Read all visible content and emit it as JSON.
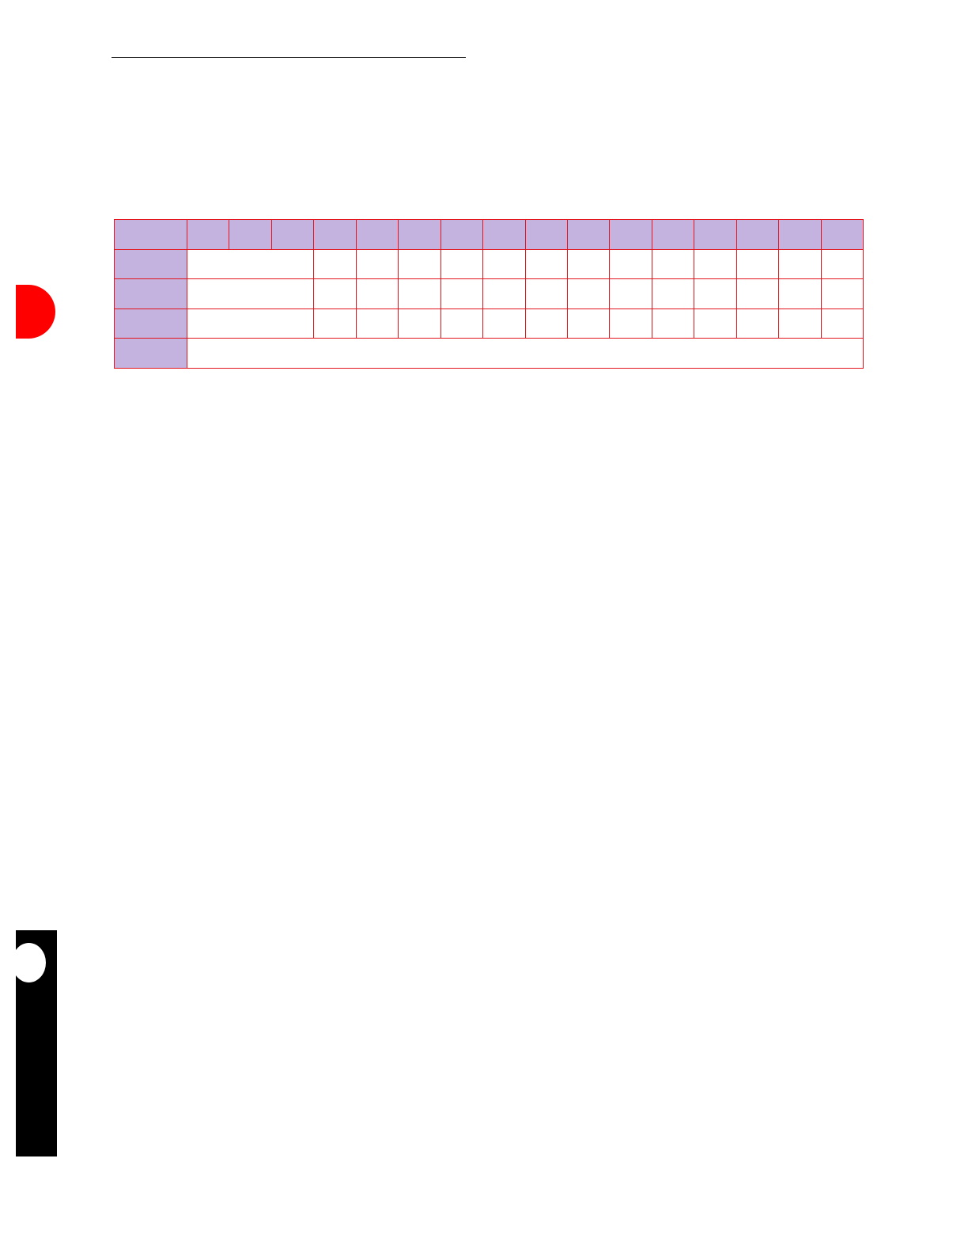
{
  "colors": {
    "table_border": "#e3141c",
    "header_fill": "#c5b3df",
    "cell_fill": "#ffffff",
    "red_tab": "#ff0000",
    "black_tab": "#000000"
  },
  "table": {
    "header_row": [
      "",
      "",
      "",
      "",
      "",
      "",
      "",
      "",
      "",
      "",
      "",
      "",
      "",
      "",
      "",
      "",
      ""
    ],
    "rows": [
      {
        "label": "",
        "merged": "",
        "cells": [
          "",
          "",
          "",
          "",
          "",
          "",
          "",
          "",
          "",
          "",
          "",
          "",
          ""
        ]
      },
      {
        "label": "",
        "merged": "",
        "cells": [
          "",
          "",
          "",
          "",
          "",
          "",
          "",
          "",
          "",
          "",
          "",
          "",
          ""
        ]
      },
      {
        "label": "",
        "merged": "",
        "cells": [
          "",
          "",
          "",
          "",
          "",
          "",
          "",
          "",
          "",
          "",
          "",
          "",
          ""
        ]
      },
      {
        "label": "",
        "merged": ""
      }
    ]
  }
}
